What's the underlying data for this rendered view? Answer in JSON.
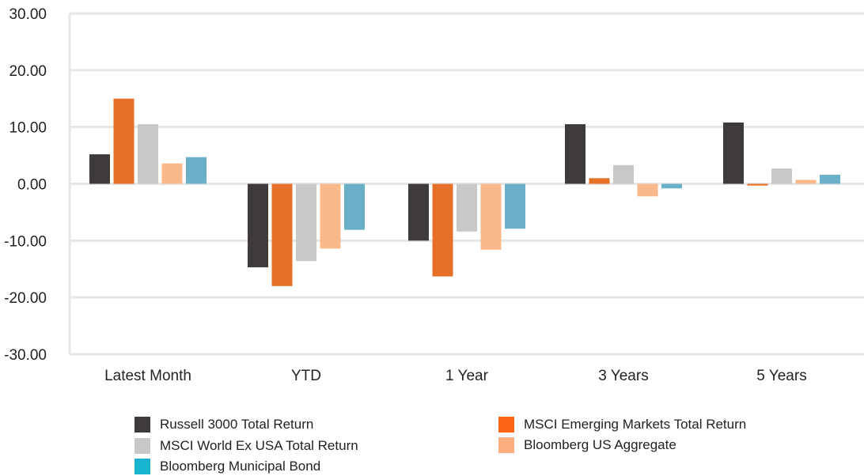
{
  "chart_data": {
    "type": "bar",
    "categories": [
      "Latest Month",
      "YTD",
      "1 Year",
      "3 Years",
      "5 Years"
    ],
    "ylim": [
      -30,
      30
    ],
    "yticks": [
      "30.00",
      "20.00",
      "10.00",
      "0.00",
      "-10.00",
      "-20.00",
      "-30.00"
    ],
    "ytick_values": [
      30,
      20,
      10,
      0,
      -10,
      -20,
      -30
    ],
    "grid": true,
    "legend_position": "bottom",
    "series": [
      {
        "name": "Russell 3000 Total Return",
        "color": "#3f3a3b",
        "values": [
          5.2,
          -14.7,
          -10.0,
          10.5,
          10.8
        ]
      },
      {
        "name": "MSCI Emerging Markets Total Return",
        "color": "#e57128",
        "values": [
          15.0,
          -18.0,
          -16.3,
          1.0,
          -0.3
        ]
      },
      {
        "name": "MSCI World Ex USA Total Return",
        "color": "#c8c8c8",
        "values": [
          10.5,
          -13.6,
          -8.4,
          3.3,
          2.7
        ]
      },
      {
        "name": "Bloomberg US Aggregate",
        "color": "#f9b98b",
        "values": [
          3.6,
          -11.4,
          -11.6,
          -2.2,
          0.7
        ]
      },
      {
        "name": "Bloomberg Municipal Bond",
        "color": "#6ab0c8",
        "values": [
          4.7,
          -8.1,
          -7.9,
          -0.8,
          1.6
        ]
      }
    ],
    "legend_swatch_colors": [
      "#3f3a3b",
      "#fe6414",
      "#c8c8c8",
      "#fcae7e",
      "#18b4cf"
    ]
  }
}
